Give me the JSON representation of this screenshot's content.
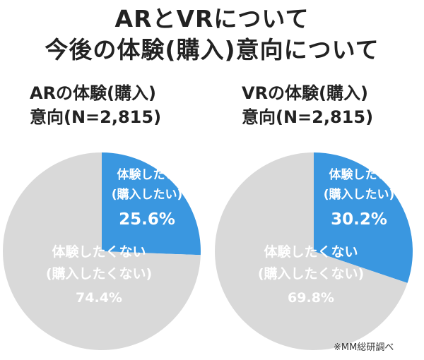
{
  "title": {
    "line1": "ARとVRについて",
    "line2": "今後の体験(購入)意向について"
  },
  "colors": {
    "accent": "#3a97e0",
    "rest": "#d9d9d9",
    "text": "#222222",
    "label_on_slice": "#ffffff"
  },
  "chart_data": [
    {
      "type": "pie",
      "title_line1": "ARの体験(購入)",
      "title_line2": "意向(N=2,815)",
      "slices": [
        {
          "name": "体験したい",
          "name_sub": "(購入したい)",
          "value": 25.6,
          "value_label": "25.6%",
          "color": "#3a97e0"
        },
        {
          "name": "体験したくない",
          "name_sub": "(購入したくない)",
          "value": 74.4,
          "value_label": "74.4%",
          "color": "#d9d9d9"
        }
      ]
    },
    {
      "type": "pie",
      "title_line1": "VRの体験(購入)",
      "title_line2": "意向(N=2,815)",
      "slices": [
        {
          "name": "体験したい",
          "name_sub": "(購入したい)",
          "value": 30.2,
          "value_label": "30.2%",
          "color": "#3a97e0"
        },
        {
          "name": "体験したくない",
          "name_sub": "(購入したくない)",
          "value": 69.8,
          "value_label": "69.8%",
          "color": "#d9d9d9"
        }
      ]
    }
  ],
  "source": "※MM総研調べ"
}
